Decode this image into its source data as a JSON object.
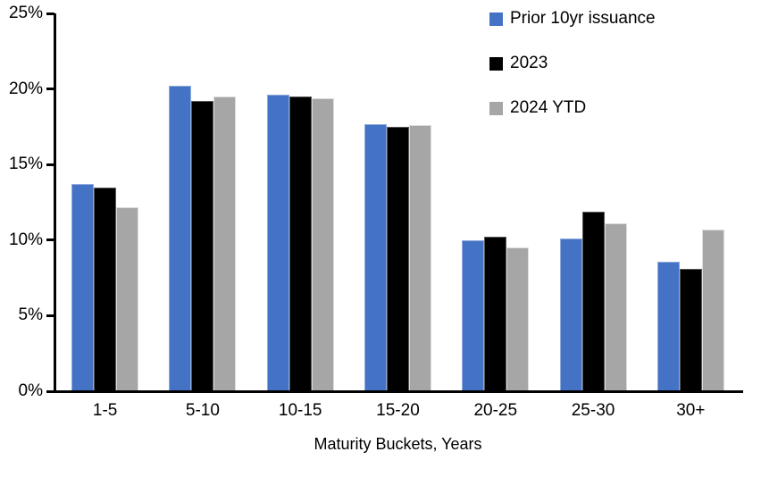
{
  "chart_data": {
    "type": "bar",
    "title": "",
    "xlabel": "Maturity Buckets, Years",
    "ylabel": "",
    "ylim": [
      0,
      25
    ],
    "ytick_step": 5,
    "ytick_labels": [
      "25%",
      "20%",
      "15%",
      "10%",
      "5%",
      "0%"
    ],
    "grid": false,
    "legend_position": "top-right",
    "axis_color": "#000000",
    "categories": [
      "1-5",
      "5-10",
      "10-15",
      "15-20",
      "20-25",
      "25-30",
      "30+"
    ],
    "series": [
      {
        "name": "Prior 10yr issuance",
        "color": "#4472C4",
        "border_color": "#8FAADC",
        "values": [
          13.7,
          20.2,
          19.6,
          17.7,
          10.0,
          10.1,
          8.6
        ]
      },
      {
        "name": "2023",
        "color": "#000000",
        "border_color": "#595959",
        "values": [
          13.5,
          19.2,
          19.5,
          17.5,
          10.2,
          11.9,
          8.1
        ]
      },
      {
        "name": "2024 YTD",
        "color": "#A6A6A6",
        "border_color": "#DCDCDC",
        "values": [
          12.2,
          19.5,
          19.4,
          17.6,
          9.5,
          11.1,
          10.7
        ]
      }
    ]
  }
}
